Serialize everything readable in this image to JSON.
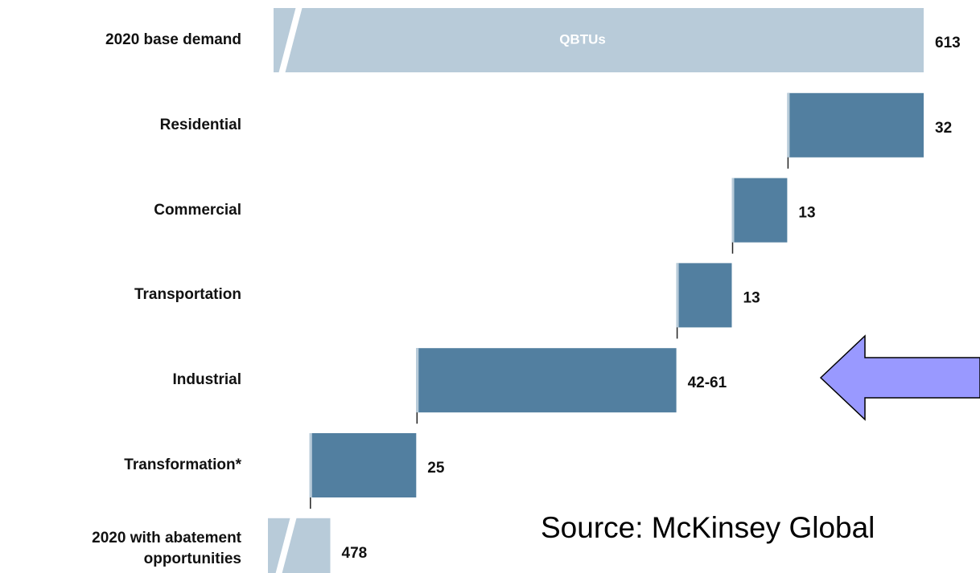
{
  "chart_data": {
    "type": "waterfall",
    "categories": [
      "2020 base demand",
      "Residential",
      "Commercial",
      "Transportation",
      "Industrial",
      "Transformation*",
      "2020 with abatement opportunities"
    ],
    "values": [
      613,
      32,
      13,
      13,
      61,
      25,
      478
    ],
    "value_labels": [
      null,
      null,
      null,
      null,
      "42-61",
      null,
      null
    ],
    "total_color": "#b8cbd9",
    "delta_color": "#527fa0",
    "bar_text": "QBTUs",
    "source": "Source:  McKinsey Global"
  }
}
